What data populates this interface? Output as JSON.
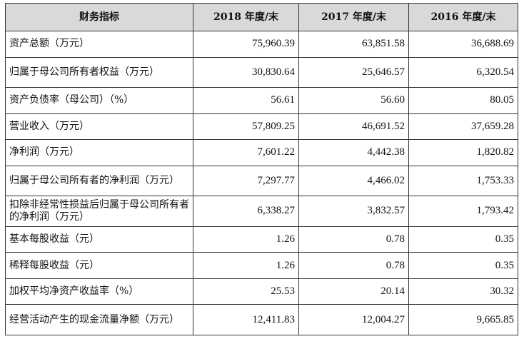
{
  "headers": [
    "财务指标",
    "2018 年度/末",
    "2017 年度/末",
    "2016 年度/末"
  ],
  "rows": [
    {
      "label": "资产总额（万元）",
      "values": [
        "75,960.39",
        "63,851.58",
        "36,688.69"
      ]
    },
    {
      "label": "归属于母公司所有者权益（万元）",
      "values": [
        "30,830.64",
        "25,646.57",
        "6,320.54"
      ]
    },
    {
      "label": "资产负债率（母公司）（%）",
      "values": [
        "56.61",
        "56.60",
        "80.05"
      ]
    },
    {
      "label": "营业收入（万元）",
      "values": [
        "57,809.25",
        "46,691.52",
        "37,659.28"
      ]
    },
    {
      "label": "净利润（万元）",
      "values": [
        "7,601.22",
        "4,442.38",
        "1,820.82"
      ]
    },
    {
      "label": "归属于母公司所有者的净利润（万元）",
      "values": [
        "7,297.77",
        "4,466.02",
        "1,753.33"
      ]
    },
    {
      "label": "扣除非经常性损益后归属于母公司所有者的净利润（万元）",
      "values": [
        "6,338.27",
        "3,832.57",
        "1,793.42"
      ]
    },
    {
      "label": "基本每股收益（元）",
      "values": [
        "1.26",
        "0.78",
        "0.35"
      ]
    },
    {
      "label": "稀释每股收益（元）",
      "values": [
        "1.26",
        "0.78",
        "0.35"
      ]
    },
    {
      "label": "加权平均净资产收益率（%）",
      "values": [
        "25.53",
        "20.14",
        "30.32"
      ]
    },
    {
      "label": "经营活动产生的现金流量净额（万元）",
      "values": [
        "12,411.83",
        "12,004.27",
        "9,665.85"
      ]
    }
  ]
}
